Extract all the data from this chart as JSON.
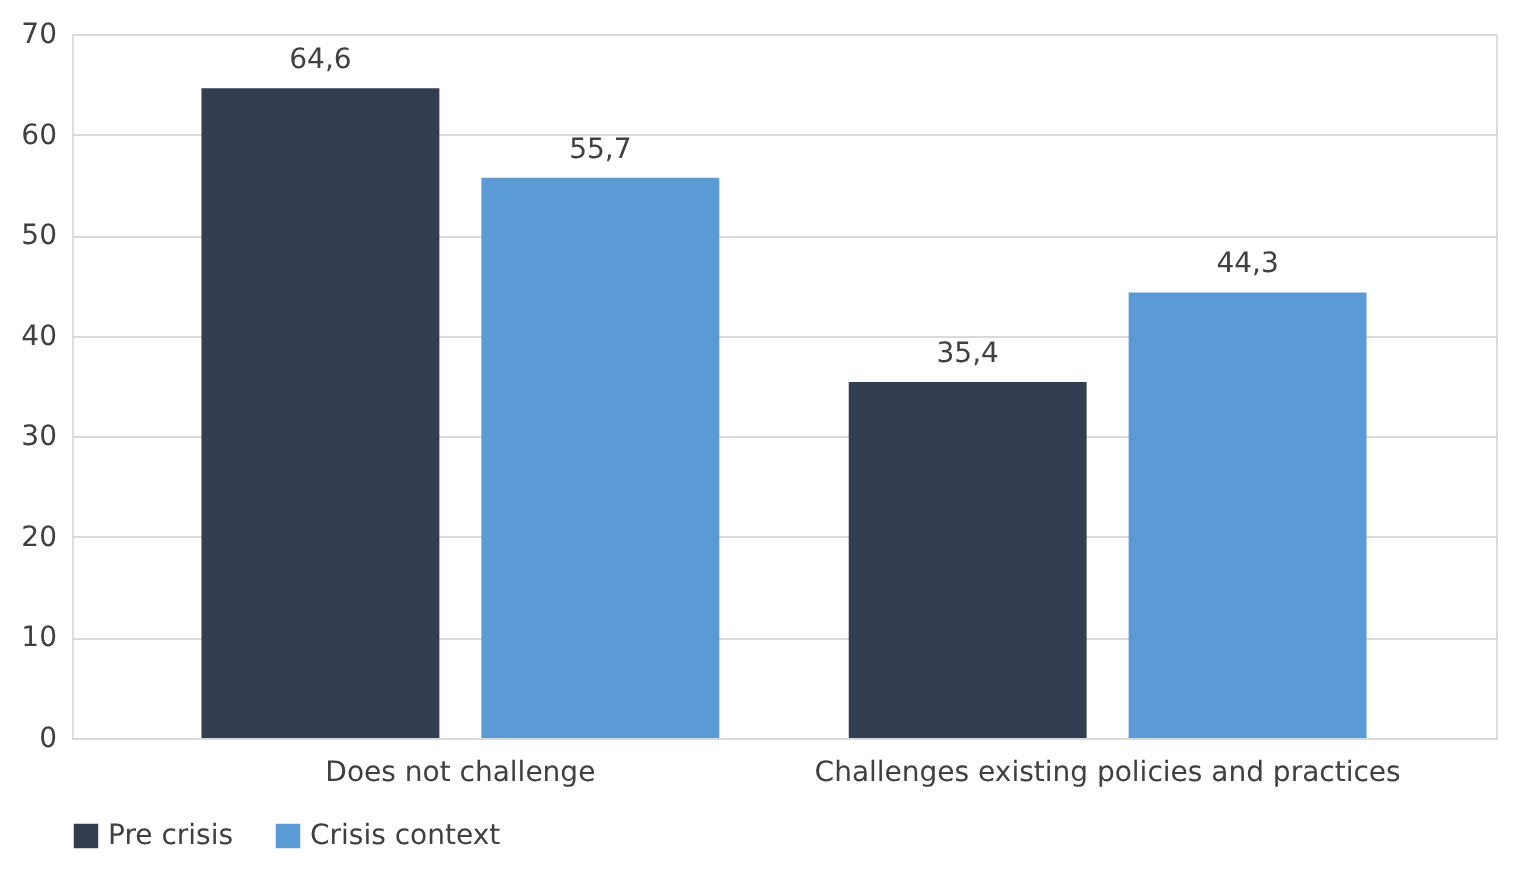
{
  "chart_data": {
    "type": "bar",
    "categories": [
      "Does not challenge",
      "Challenges existing policies and practices"
    ],
    "series": [
      {
        "name": "Pre crisis",
        "color": "#333f50",
        "values": [
          64.6,
          35.4
        ],
        "value_labels": [
          "64,6",
          "35,4"
        ]
      },
      {
        "name": "Crisis context",
        "color": "#5b9bd5",
        "values": [
          55.7,
          44.3
        ],
        "value_labels": [
          "55,7",
          "44,3"
        ]
      }
    ],
    "ylim": [
      0,
      70
    ],
    "yticks": [
      0,
      10,
      20,
      30,
      40,
      50,
      60,
      70
    ],
    "grid": "y",
    "legend": "bottom"
  }
}
